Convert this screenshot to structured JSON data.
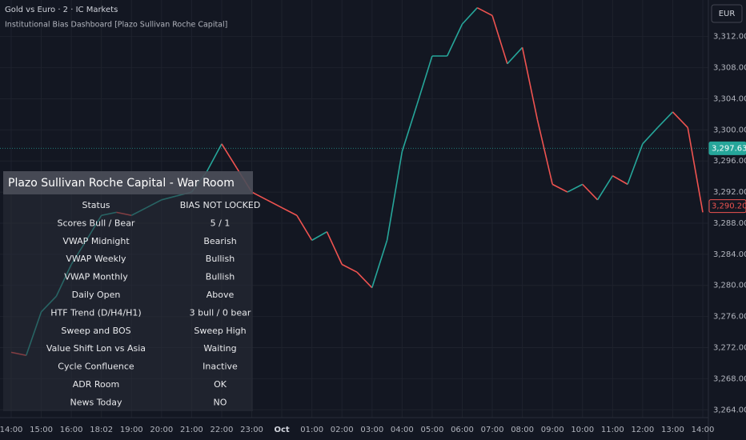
{
  "chart_data": {
    "type": "line",
    "title": "Gold vs Euro · 2 · IC Markets",
    "subtitle": "Institutional Bias Dashboard [Plazo Sullivan Roche Capital]",
    "currency": "EUR",
    "categories": [
      "14:00",
      null,
      "15:00",
      null,
      "16:00",
      null,
      "18:02",
      null,
      "19:00",
      null,
      "20:00",
      null,
      "21:00",
      null,
      "22:00",
      null,
      "23:00",
      null,
      "Oct",
      null,
      "01:00",
      null,
      "02:00",
      null,
      "03:00",
      null,
      "04:00",
      null,
      "05:00",
      null,
      "06:00",
      null,
      "07:00",
      null,
      "08:00",
      null,
      "09:00",
      null,
      "10:00",
      null,
      "11:00",
      null,
      "12:00",
      null,
      "13:00",
      null,
      "14:00"
    ],
    "values": [
      3271.4,
      3271.0,
      3276.6,
      3278.6,
      3282.7,
      3285.8,
      3289.0,
      3289.4,
      3289.0,
      3290.0,
      3291.0,
      3291.5,
      3292.0,
      3294.6,
      3298.2,
      3295.1,
      3292.0,
      3291.0,
      3290.0,
      3289.0,
      3285.8,
      3286.9,
      3282.7,
      3281.7,
      3279.7,
      3285.8,
      3297.2,
      3303.3,
      3309.5,
      3309.5,
      3313.6,
      3315.7,
      3314.7,
      3308.5,
      3310.6,
      3301.3,
      3293.0,
      3292.0,
      3293.0,
      3291.0,
      3294.1,
      3293.0,
      3298.2,
      3300.3,
      3302.3,
      3300.3,
      3289.4
    ],
    "up_color": "#26a69a",
    "down_color": "#ef5350",
    "ylim": [
      3263,
      3316.7
    ],
    "yticks": [
      {
        "value": 3264,
        "label": "3,264.00"
      },
      {
        "value": 3268,
        "label": "3,268.00"
      },
      {
        "value": 3272,
        "label": "3,272.00"
      },
      {
        "value": 3276,
        "label": "3,276.00"
      },
      {
        "value": 3280,
        "label": "3,280.00"
      },
      {
        "value": 3284,
        "label": "3,284.00"
      },
      {
        "value": 3288,
        "label": "3,288.00"
      },
      {
        "value": 3292,
        "label": "3,292.00"
      },
      {
        "value": 3296,
        "label": "3,296.00"
      },
      {
        "value": 3300,
        "label": "3,300.00"
      },
      {
        "value": 3304,
        "label": "3,304.00"
      },
      {
        "value": 3308,
        "label": "3,308.00"
      },
      {
        "value": 3312,
        "label": "3,312.00"
      }
    ],
    "grid": true,
    "price_labels": [
      {
        "value": 3297.63,
        "label": "3,297.63",
        "color": "#26a69a"
      },
      {
        "value": 3290.2,
        "label": "3,290.20",
        "color": "#ef5350"
      }
    ]
  },
  "dashboard": {
    "title": "Plazo Sullivan Roche Capital - War Room",
    "rows": [
      [
        "Status",
        "BIAS NOT LOCKED"
      ],
      [
        "Scores Bull / Bear",
        "5 / 1"
      ],
      [
        "VWAP Midnight",
        "Bearish"
      ],
      [
        "VWAP Weekly",
        "Bullish"
      ],
      [
        "VWAP Monthly",
        "Bullish"
      ],
      [
        "Daily Open",
        "Above"
      ],
      [
        "HTF Trend (D/H4/H1)",
        "3 bull / 0 bear"
      ],
      [
        "Sweep and BOS",
        "Sweep High"
      ],
      [
        "Value Shift Lon vs Asia",
        "Waiting"
      ],
      [
        "Cycle Confluence",
        "Inactive"
      ],
      [
        "ADR Room",
        "OK"
      ],
      [
        "News Today",
        "NO"
      ]
    ]
  }
}
